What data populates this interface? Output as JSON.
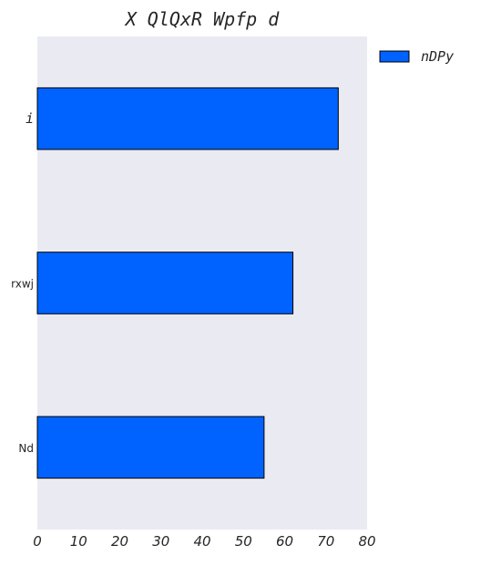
{
  "chart_data": {
    "type": "bar",
    "orientation": "horizontal",
    "title": "X QlQxR Wpfp d",
    "xlabel": "",
    "ylabel": "",
    "categories": [
      "i",
      "rxwj",
      "Nd"
    ],
    "series": [
      {
        "name": "nDPy",
        "values": [
          73,
          62,
          55
        ],
        "color": "#0062ff"
      }
    ],
    "xlim": [
      0,
      80
    ],
    "xticks": [
      0,
      10,
      20,
      30,
      40,
      50,
      60,
      70,
      80
    ],
    "grid": false,
    "legend_position": "outside-top-right",
    "background": "#eaeaf2"
  }
}
